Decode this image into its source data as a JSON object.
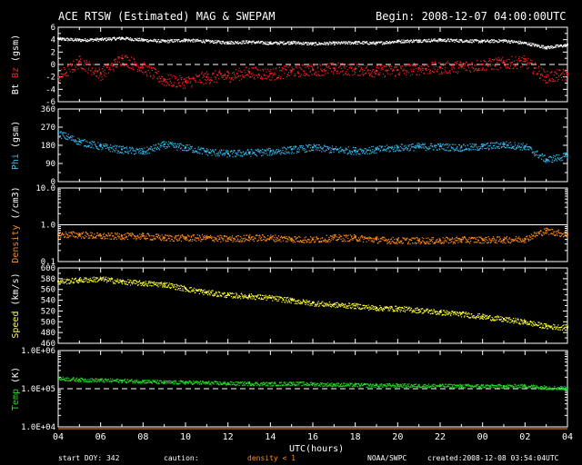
{
  "header": {
    "title": "ACE RTSW (Estimated) MAG & SWEPAM",
    "begin": "Begin: 2008-12-07 04:00:00UTC"
  },
  "footer": {
    "start_doy": "start DOY: 342",
    "caution": "caution:",
    "density_note": "density < 1",
    "source": "NOAA/SWPC",
    "created": "created:2008-12-08 03:54:04UTC"
  },
  "colors": {
    "bt": "#ffffff",
    "bz": "#ff2020",
    "phi": "#33bbee",
    "density": "#ff8c1a",
    "speed": "#ffff33",
    "temp": "#22dd22"
  },
  "chart_data": {
    "type": "scatter",
    "x_label": "UTC(hours)",
    "x_ticks": [
      "04",
      "06",
      "08",
      "10",
      "12",
      "14",
      "16",
      "18",
      "20",
      "22",
      "00",
      "02",
      "04"
    ],
    "panels": [
      {
        "id": "mag",
        "ylabel_parts": [
          "Bt",
          "Bz",
          "(gsm)"
        ],
        "ylim": [
          -6,
          6
        ],
        "y_ticks": [
          "6",
          "4",
          "2",
          "0",
          "-2",
          "-4",
          "-6"
        ],
        "y_tick_values": [
          6,
          4,
          2,
          0,
          -2,
          -4,
          -6
        ],
        "dashed_at": 0,
        "series": [
          {
            "name": "Bt",
            "color_key": "bt",
            "x": [
              0,
              1,
              2,
              3,
              4,
              5,
              6,
              7,
              8,
              9,
              10,
              11,
              12,
              13,
              14,
              15,
              16,
              17,
              18,
              19,
              20,
              21,
              22,
              23,
              24
            ],
            "y": [
              4.2,
              4.0,
              4.1,
              4.3,
              4.0,
              3.8,
              4.0,
              3.8,
              3.6,
              3.7,
              3.5,
              3.6,
              3.4,
              3.5,
              3.6,
              3.5,
              3.8,
              3.9,
              4.0,
              3.9,
              3.8,
              3.9,
              3.5,
              2.8,
              3.2
            ]
          },
          {
            "name": "Bz",
            "color_key": "bz",
            "x": [
              0,
              1,
              2,
              3,
              4,
              5,
              6,
              7,
              8,
              9,
              10,
              11,
              12,
              13,
              14,
              15,
              16,
              17,
              18,
              19,
              20,
              21,
              22,
              23,
              24
            ],
            "y": [
              -2.0,
              0.5,
              -1.5,
              1.0,
              -0.5,
              -2.5,
              -2.8,
              -2.0,
              -1.8,
              -1.2,
              -1.5,
              -1.0,
              -0.8,
              -0.6,
              -0.7,
              -1.0,
              -0.9,
              -0.6,
              -0.5,
              -0.3,
              0.0,
              0.3,
              0.5,
              -2.0,
              -1.5
            ]
          }
        ]
      },
      {
        "id": "phi",
        "ylabel_parts": [
          "Phi",
          "(gsm)"
        ],
        "ylim": [
          0,
          360
        ],
        "y_ticks": [
          "360",
          "270",
          "180",
          "90",
          "0"
        ],
        "y_tick_values": [
          360,
          270,
          180,
          90,
          0
        ],
        "series": [
          {
            "name": "Phi",
            "color_key": "phi",
            "x": [
              0,
              1,
              2,
              3,
              4,
              5,
              6,
              7,
              8,
              9,
              10,
              11,
              12,
              13,
              14,
              15,
              16,
              17,
              18,
              19,
              20,
              21,
              22,
              23,
              24
            ],
            "y": [
              240,
              200,
              175,
              160,
              150,
              185,
              170,
              150,
              140,
              145,
              150,
              160,
              170,
              160,
              155,
              160,
              170,
              175,
              175,
              170,
              175,
              185,
              175,
              110,
              130
            ]
          }
        ]
      },
      {
        "id": "density",
        "ylabel_parts": [
          "Density",
          "(/cm3)"
        ],
        "scale": "log",
        "ylim": [
          0.1,
          10
        ],
        "y_ticks": [
          "10.0",
          "1.0",
          "0.1"
        ],
        "y_tick_values": [
          10,
          1,
          0.1
        ],
        "series": [
          {
            "name": "Density",
            "color_key": "density",
            "x": [
              0,
              1,
              2,
              3,
              4,
              5,
              6,
              7,
              8,
              9,
              10,
              11,
              12,
              13,
              14,
              15,
              16,
              17,
              18,
              19,
              20,
              21,
              22,
              23,
              24
            ],
            "y": [
              0.55,
              0.55,
              0.5,
              0.5,
              0.5,
              0.45,
              0.45,
              0.45,
              0.42,
              0.45,
              0.45,
              0.42,
              0.4,
              0.45,
              0.45,
              0.4,
              0.38,
              0.38,
              0.38,
              0.4,
              0.4,
              0.4,
              0.42,
              0.7,
              0.55
            ]
          }
        ]
      },
      {
        "id": "speed",
        "ylabel_parts": [
          "Speed",
          "(km/s)"
        ],
        "ylim": [
          460,
          600
        ],
        "y_ticks": [
          "600",
          "580",
          "560",
          "540",
          "520",
          "500",
          "480",
          "460"
        ],
        "y_tick_values": [
          600,
          580,
          560,
          540,
          520,
          500,
          480,
          460
        ],
        "series": [
          {
            "name": "Speed",
            "color_key": "speed",
            "x": [
              0,
              1,
              2,
              3,
              4,
              5,
              6,
              7,
              8,
              9,
              10,
              11,
              12,
              13,
              14,
              15,
              16,
              17,
              18,
              19,
              20,
              21,
              22,
              23,
              24
            ],
            "y": [
              575,
              578,
              580,
              575,
              572,
              570,
              562,
              555,
              550,
              548,
              545,
              540,
              535,
              532,
              530,
              526,
              525,
              522,
              518,
              515,
              510,
              505,
              500,
              492,
              490
            ]
          }
        ]
      },
      {
        "id": "temp",
        "ylabel_parts": [
          "Temp",
          "(K)"
        ],
        "scale": "log",
        "ylim": [
          10000,
          1000000
        ],
        "y_ticks": [
          "1.0E+06",
          "1.0E+05",
          "1.0E+04"
        ],
        "y_tick_values": [
          1000000,
          100000,
          10000
        ],
        "dashed_at": 100000,
        "series": [
          {
            "name": "Temp",
            "color_key": "temp",
            "x": [
              0,
              1,
              2,
              3,
              4,
              5,
              6,
              7,
              8,
              9,
              10,
              11,
              12,
              13,
              14,
              15,
              16,
              17,
              18,
              19,
              20,
              21,
              22,
              23,
              24
            ],
            "y": [
              190000,
              175000,
              170000,
              165000,
              160000,
              150000,
              150000,
              145000,
              140000,
              140000,
              135000,
              140000,
              135000,
              130000,
              128000,
              125000,
              125000,
              122000,
              122000,
              120000,
              120000,
              118000,
              120000,
              110000,
              105000
            ]
          }
        ]
      }
    ]
  }
}
